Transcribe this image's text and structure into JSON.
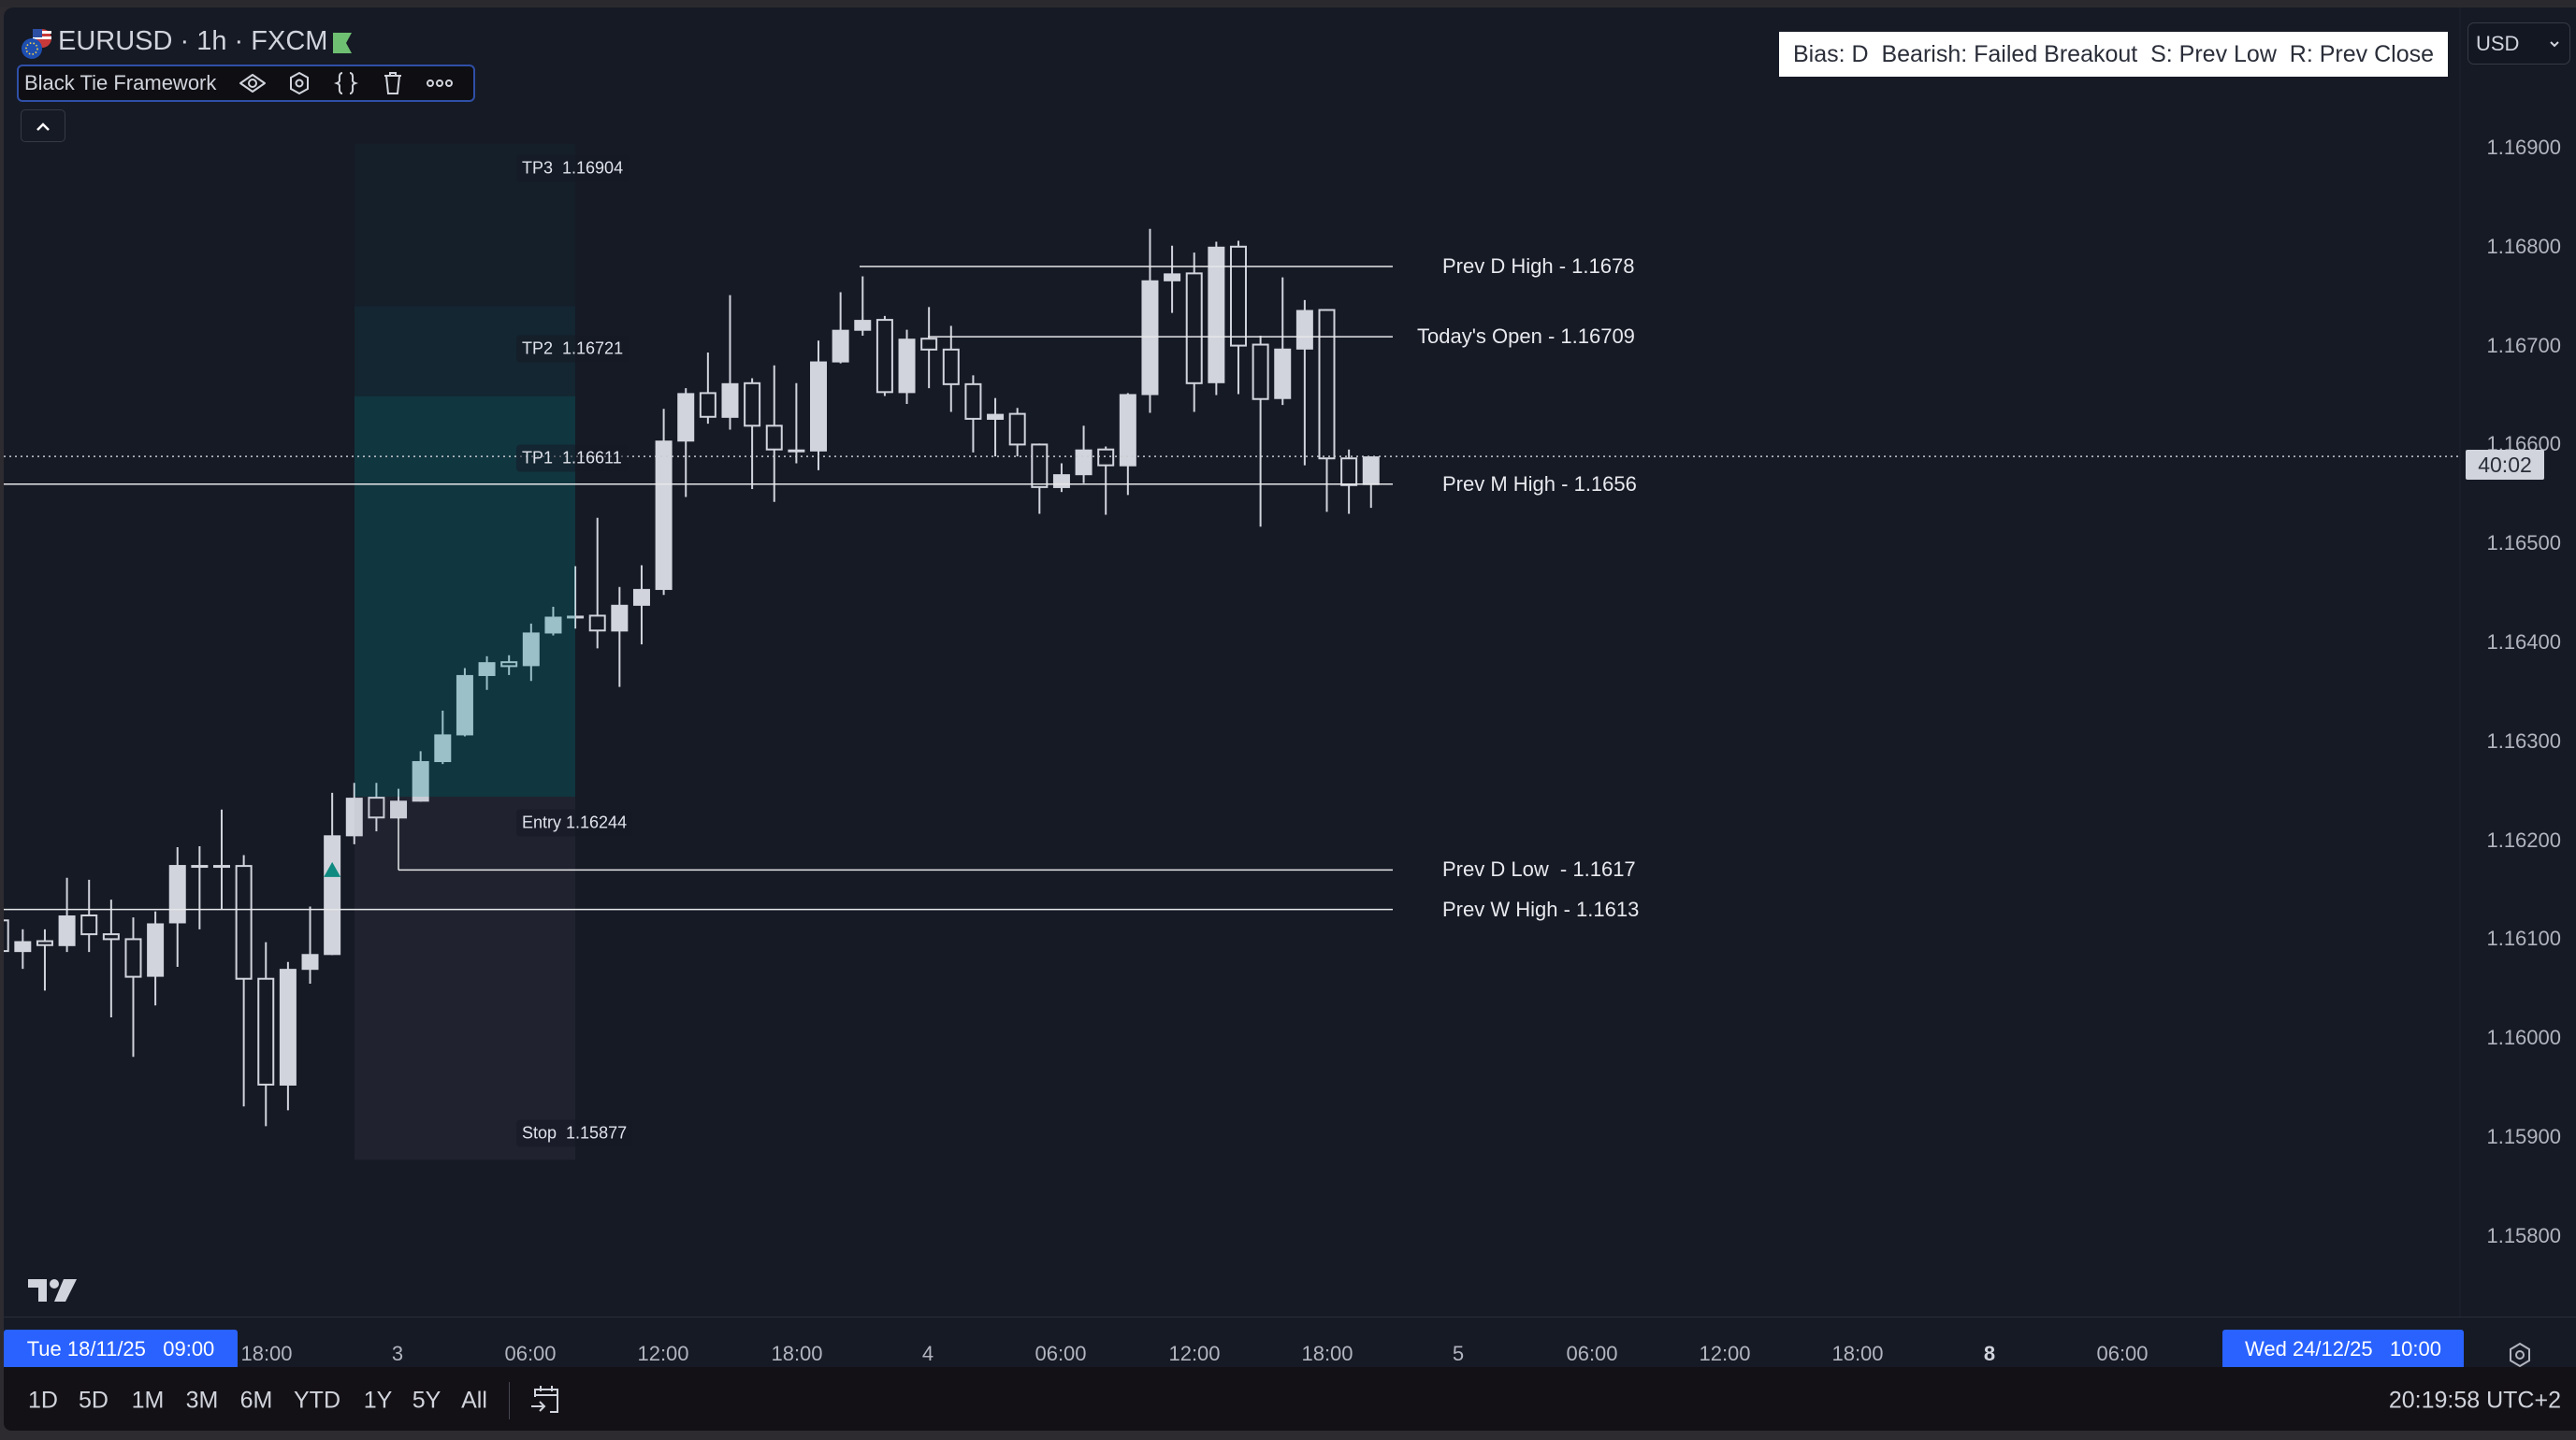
{
  "header": {
    "symbol_title": "EURUSD · 1h · FXCM",
    "symbol_icon": "eur-usd-flags-icon",
    "status_flag_color": "#6fbf73",
    "indicator_name": "Black Tie Framework",
    "indicator_icons": [
      "eye-icon",
      "settings-icon",
      "source-code-icon",
      "trash-icon",
      "more-icon"
    ],
    "collapse_icon": "chevron-up-icon"
  },
  "bias_box": {
    "text": "Bias: D  Bearish: Failed Breakout  S: Prev Low  R: Prev Close"
  },
  "currency_select": {
    "value": "USD"
  },
  "price_axis": {
    "labels": [
      "1.16900",
      "1.16800",
      "1.16700",
      "1.16600",
      "1.16500",
      "1.16400",
      "1.16300",
      "1.16200",
      "1.16100",
      "1.16000",
      "1.15900",
      "1.15800"
    ],
    "countdown": "40:02",
    "last_price": 1.16588
  },
  "levels": [
    {
      "label": "Prev D High - 1.1678",
      "price": 1.1678
    },
    {
      "label": "Today's Open - 1.16709",
      "price": 1.16709
    },
    {
      "label": "Prev M High - 1.1656",
      "price": 1.1656
    },
    {
      "label": "Prev D Low  - 1.1617",
      "price": 1.1617
    },
    {
      "label": "Prev W High - 1.1613",
      "price": 1.1613
    }
  ],
  "position": {
    "tp3": {
      "label": "TP3  1.16904",
      "price": 1.16904
    },
    "tp2": {
      "label": "TP2  1.16721",
      "price": 1.16721
    },
    "tp1": {
      "label": "TP1  1.16611",
      "price": 1.16611
    },
    "entry": {
      "label": "Entry 1.16244",
      "price": 1.16244
    },
    "stop": {
      "label": "Stop  1.15877",
      "price": 1.15877
    },
    "signal_marker_color": "#0e8a80"
  },
  "time_axis": {
    "range_start": "Tue 18/11/25   09:00",
    "range_end": "Wed 24/12/25   10:00",
    "labels": [
      "18:00",
      "3",
      "06:00",
      "12:00",
      "18:00",
      "4",
      "06:00",
      "12:00",
      "18:00",
      "5",
      "06:00",
      "12:00",
      "18:00",
      "8",
      "06:00"
    ],
    "settings_icon": "settings-icon"
  },
  "bottom_bar": {
    "ranges": [
      "1D",
      "5D",
      "1M",
      "3M",
      "6M",
      "YTD",
      "1Y",
      "5Y",
      "All"
    ],
    "goto_date_icon": "calendar-goto-icon",
    "clock": "20:19:58 UTC+2"
  },
  "chart_data": {
    "type": "candlestick",
    "ylim": [
      1.1575,
      1.1698
    ],
    "columns": [
      "open",
      "high",
      "low",
      "close"
    ],
    "candles": [
      [
        1.16119,
        1.16125,
        1.1608,
        1.16088
      ],
      [
        1.16087,
        1.1611,
        1.1607,
        1.16098
      ],
      [
        1.16098,
        1.1611,
        1.16048,
        1.16094
      ],
      [
        1.16093,
        1.16162,
        1.16087,
        1.16124
      ],
      [
        1.16124,
        1.1616,
        1.16087,
        1.16105
      ],
      [
        1.16105,
        1.1614,
        1.16021,
        1.161
      ],
      [
        1.161,
        1.16122,
        1.15981,
        1.16062
      ],
      [
        1.16062,
        1.16128,
        1.16033,
        1.16116
      ],
      [
        1.16116,
        1.16193,
        1.16072,
        1.16175
      ],
      [
        1.16173,
        1.16194,
        1.1611,
        1.16175
      ],
      [
        1.16174,
        1.16231,
        1.1613,
        1.16175
      ],
      [
        1.16174,
        1.16185,
        1.15931,
        1.1606
      ],
      [
        1.1606,
        1.16097,
        1.15911,
        1.15953
      ],
      [
        1.15952,
        1.16077,
        1.15927,
        1.1607
      ],
      [
        1.16069,
        1.16133,
        1.16055,
        1.16085
      ],
      [
        1.16084,
        1.16248,
        1.16084,
        1.16205
      ],
      [
        1.16204,
        1.16258,
        1.16196,
        1.16243
      ],
      [
        1.16243,
        1.16258,
        1.16209,
        1.16223
      ],
      [
        1.16222,
        1.16252,
        1.16222,
        1.1624
      ],
      [
        1.16239,
        1.1629,
        1.16239,
        1.1628
      ],
      [
        1.16279,
        1.16331,
        1.16277,
        1.16307
      ],
      [
        1.16306,
        1.16374,
        1.16305,
        1.16367
      ],
      [
        1.16366,
        1.16386,
        1.16352,
        1.1638
      ],
      [
        1.1638,
        1.16387,
        1.16367,
        1.16376
      ],
      [
        1.16376,
        1.16419,
        1.16361,
        1.1641
      ],
      [
        1.16409,
        1.16436,
        1.16407,
        1.16426
      ],
      [
        1.16425,
        1.16477,
        1.16414,
        1.16427
      ],
      [
        1.16427,
        1.16526,
        1.16394,
        1.16412
      ],
      [
        1.16411,
        1.16456,
        1.16355,
        1.16438
      ],
      [
        1.16437,
        1.16478,
        1.16398,
        1.16454
      ],
      [
        1.16453,
        1.16636,
        1.16448,
        1.16604
      ],
      [
        1.16603,
        1.16657,
        1.16547,
        1.16652
      ],
      [
        1.16652,
        1.16693,
        1.16621,
        1.16628
      ],
      [
        1.16627,
        1.16751,
        1.16615,
        1.16662
      ],
      [
        1.16662,
        1.16667,
        1.16555,
        1.16619
      ],
      [
        1.16619,
        1.1668,
        1.16542,
        1.16595
      ],
      [
        1.16593,
        1.16662,
        1.16581,
        1.16595
      ],
      [
        1.16593,
        1.16705,
        1.16574,
        1.16684
      ],
      [
        1.16683,
        1.16754,
        1.16682,
        1.16716
      ],
      [
        1.16715,
        1.1677,
        1.1671,
        1.16726
      ],
      [
        1.16726,
        1.1673,
        1.16649,
        1.16653
      ],
      [
        1.16652,
        1.16716,
        1.16641,
        1.16707
      ],
      [
        1.16707,
        1.16739,
        1.16657,
        1.16696
      ],
      [
        1.16696,
        1.1672,
        1.16633,
        1.16661
      ],
      [
        1.16661,
        1.1667,
        1.16592,
        1.16626
      ],
      [
        1.16625,
        1.16647,
        1.16588,
        1.16631
      ],
      [
        1.16631,
        1.16637,
        1.16588,
        1.166
      ],
      [
        1.166,
        1.16601,
        1.1653,
        1.16557
      ],
      [
        1.16556,
        1.16581,
        1.16552,
        1.1657
      ],
      [
        1.16569,
        1.16619,
        1.16561,
        1.16595
      ],
      [
        1.16595,
        1.16598,
        1.16529,
        1.16579
      ],
      [
        1.16578,
        1.16652,
        1.16549,
        1.16651
      ],
      [
        1.1665,
        1.16818,
        1.16632,
        1.16766
      ],
      [
        1.16765,
        1.16801,
        1.16733,
        1.16773
      ],
      [
        1.16773,
        1.16794,
        1.16633,
        1.16662
      ],
      [
        1.16662,
        1.16805,
        1.1665,
        1.168
      ],
      [
        1.168,
        1.16806,
        1.16651,
        1.167
      ],
      [
        1.16701,
        1.1671,
        1.16517,
        1.16646
      ],
      [
        1.16646,
        1.16769,
        1.1664,
        1.16697
      ],
      [
        1.16696,
        1.16746,
        1.16579,
        1.16736
      ],
      [
        1.16736,
        1.16737,
        1.16532,
        1.16586
      ],
      [
        1.16586,
        1.16595,
        1.1653,
        1.16559
      ],
      [
        1.16559,
        1.16588,
        1.16536,
        1.16588
      ]
    ],
    "candle_color": "#d1d4dc",
    "background": "#161a25"
  }
}
